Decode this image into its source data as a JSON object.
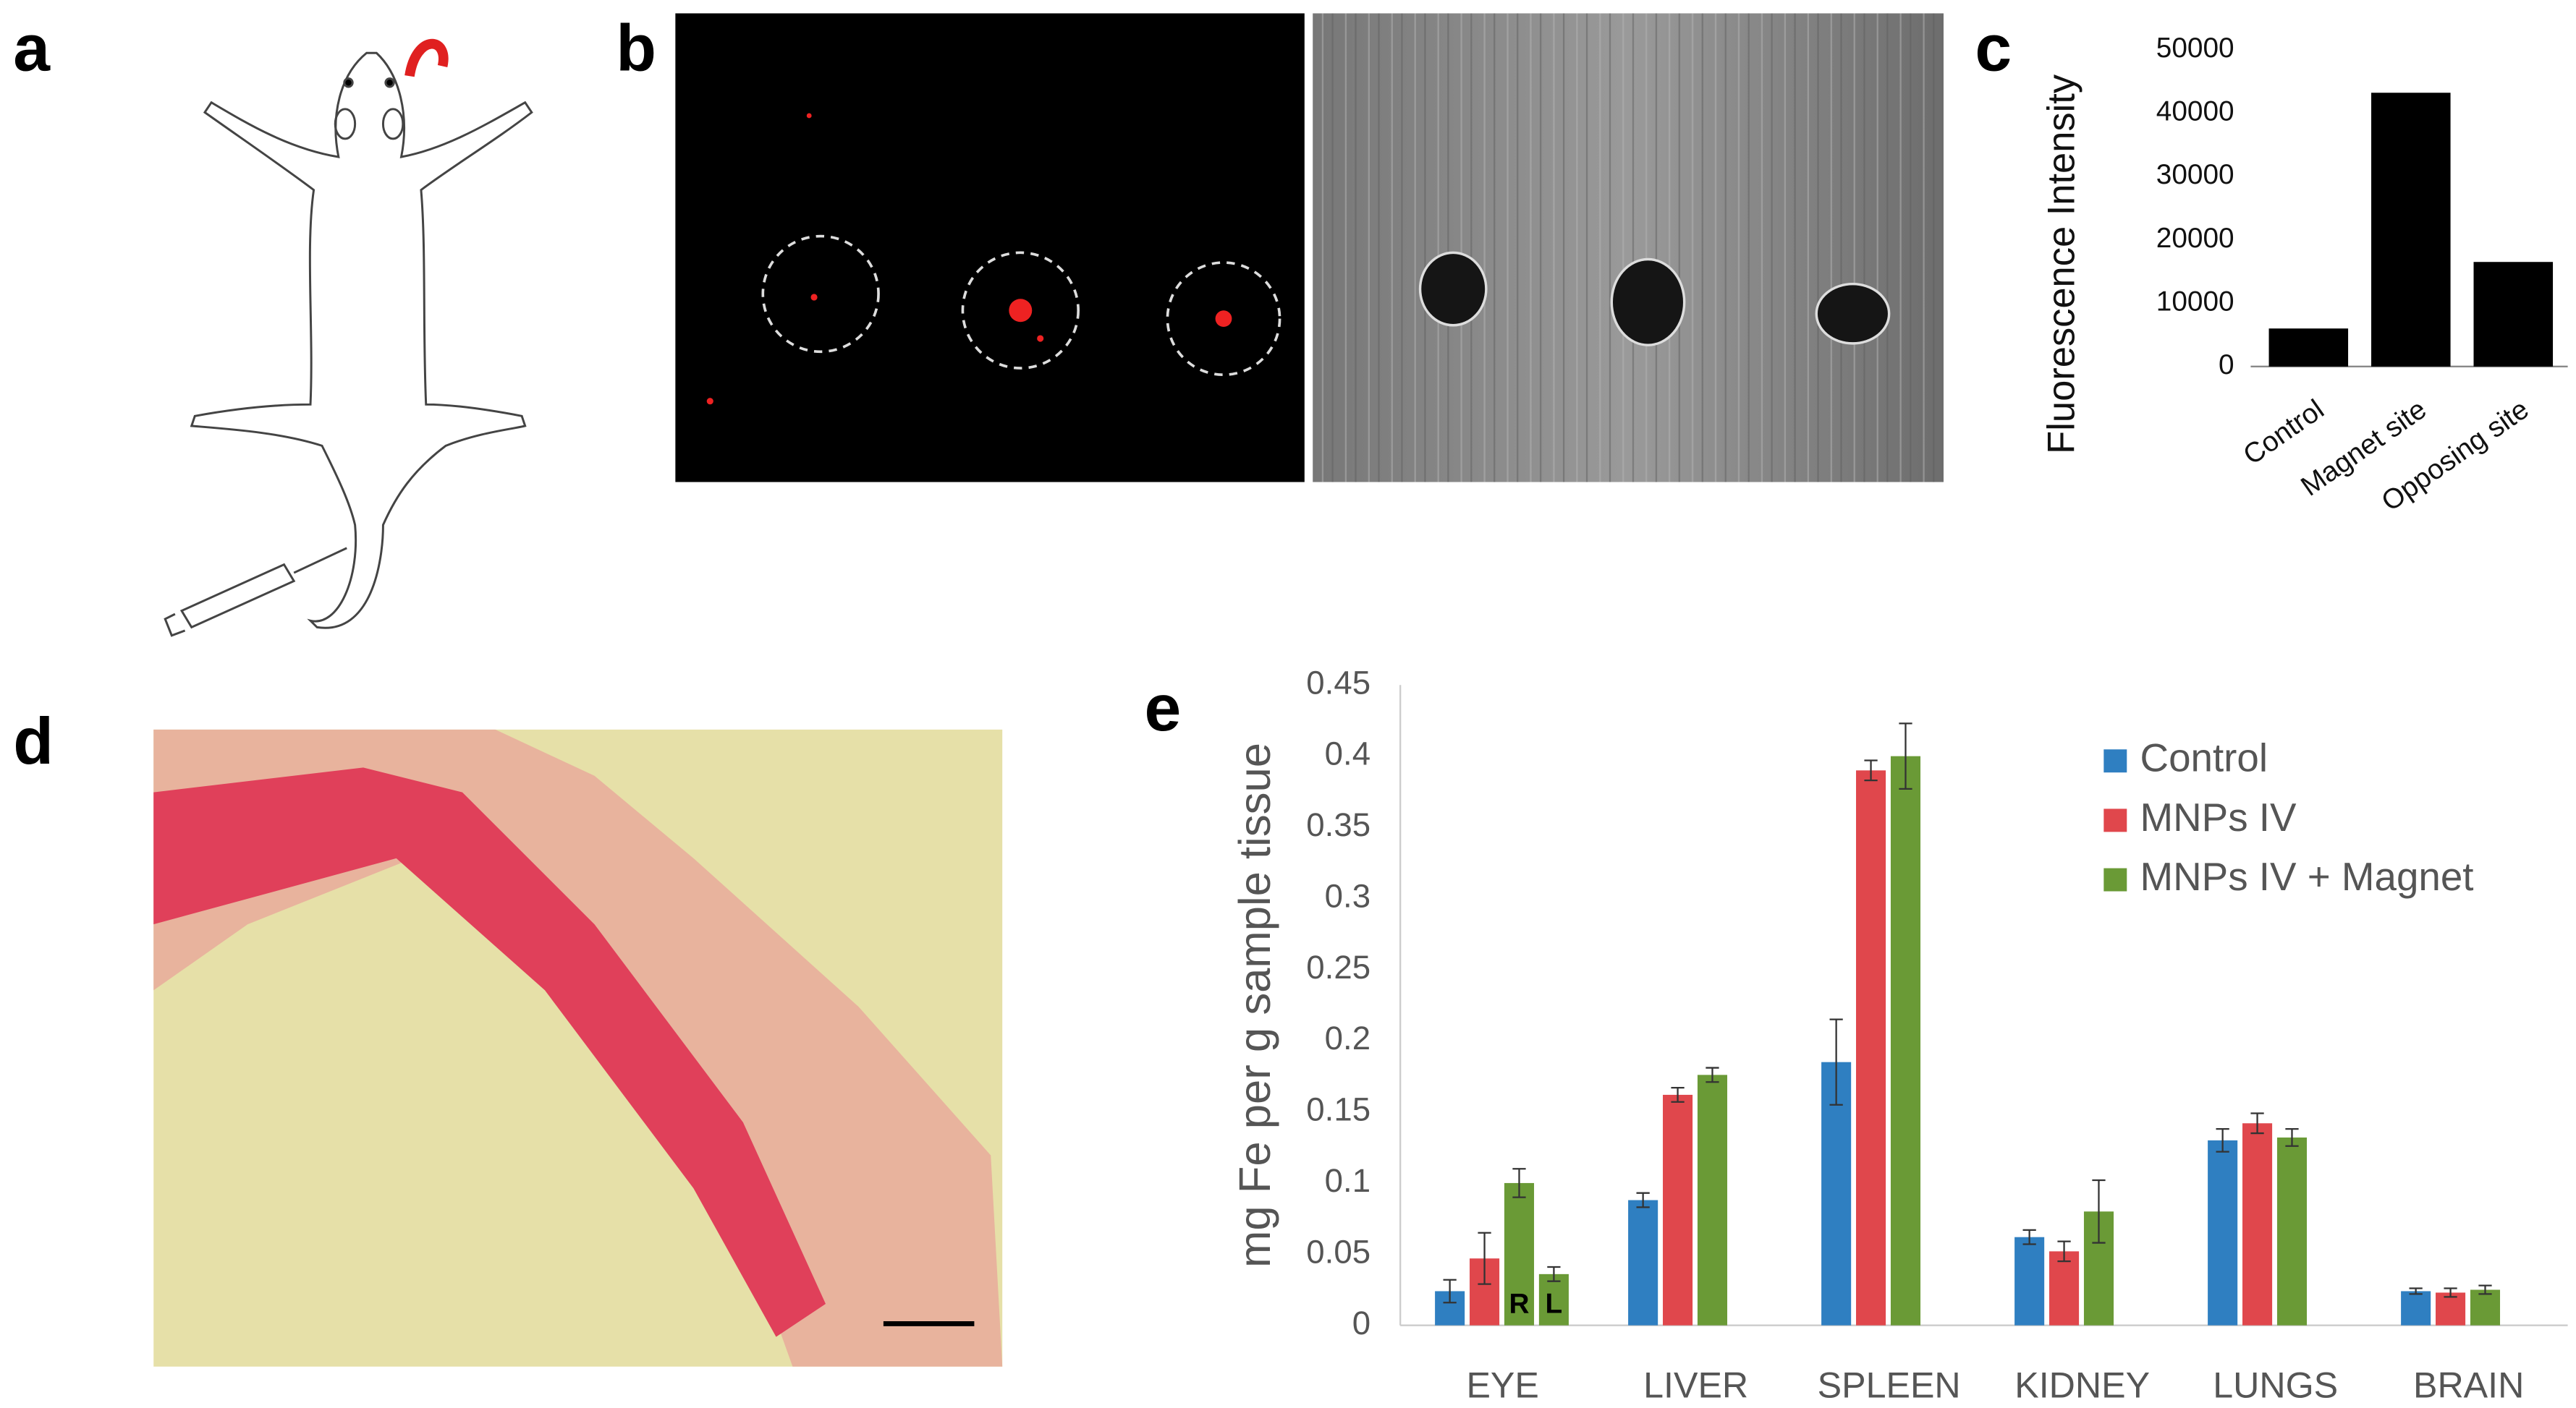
{
  "panel_labels": [
    "a",
    "b",
    "c",
    "d",
    "e"
  ],
  "chart_data": [
    {
      "type": "bar",
      "y_label": "Fluorescence Intensity",
      "categories": [
        "Control",
        "Magnet site",
        "Opposing site"
      ],
      "values": [
        6000,
        43200,
        16500
      ],
      "color": "#000000",
      "ylim": [
        0,
        50000
      ],
      "yticks": [
        0,
        10000,
        20000,
        30000,
        40000,
        50000
      ]
    },
    {
      "type": "grouped_bar",
      "y_label": "mg Fe per g sample tissue",
      "categories": [
        "EYE",
        "LIVER",
        "SPLEEN",
        "KIDNEY",
        "LUNGS",
        "BRAIN"
      ],
      "series": [
        {
          "name": "Control",
          "color": "#2f7fc1",
          "values": [
            0.024,
            0.088,
            0.185,
            0.062,
            0.13,
            0.024
          ],
          "errors": [
            0.008,
            0.005,
            0.03,
            0.005,
            0.008,
            0.002
          ]
        },
        {
          "name": "MNPs IV",
          "color": "#e0474c",
          "values": [
            0.047,
            0.162,
            0.39,
            0.052,
            0.142,
            0.023
          ],
          "errors": [
            0.018,
            0.005,
            0.007,
            0.007,
            0.007,
            0.003
          ]
        },
        {
          "name": "MNPs IV + Magnet",
          "color": "#6a9a36",
          "values": [
            0.1,
            0.176,
            0.4,
            0.08,
            0.132,
            0.025
          ],
          "errors": [
            0.01,
            0.005,
            0.023,
            0.022,
            0.006,
            0.003
          ]
        }
      ],
      "annotations": [
        {
          "text": "R"
        },
        {
          "text": "L",
          "value": 0.036,
          "error": 0.005
        }
      ],
      "ylim": [
        0,
        0.45
      ],
      "yticks": [
        0,
        0.05,
        0.1,
        0.15,
        0.2,
        0.25,
        0.3,
        0.35,
        0.4,
        0.45
      ]
    }
  ]
}
